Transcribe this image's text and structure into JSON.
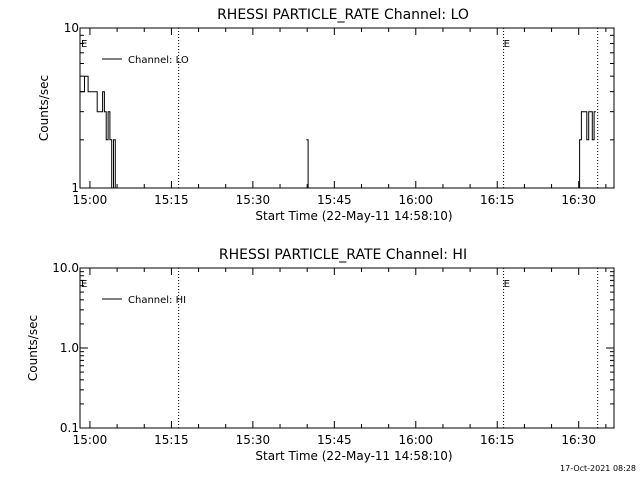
{
  "footer": {
    "timestamp": "17-Oct-2021 08:28"
  },
  "chart_data": [
    {
      "type": "line",
      "title": "RHESSI PARTICLE_RATE Channel: LO",
      "xlabel": "Start Time (22-May-11 14:58:10)",
      "ylabel": "Counts/sec",
      "xlim": [
        "14:58:10",
        "16:36:30"
      ],
      "ylim": [
        1,
        10
      ],
      "yscale": "log",
      "grid": false,
      "legend_position": "top-left",
      "x_ticks": [
        "15:00",
        "15:15",
        "15:30",
        "15:45",
        "16:00",
        "16:15",
        "16:30"
      ],
      "y_ticks": [
        "1",
        "10"
      ],
      "markers": [
        {
          "label": "E",
          "time": "14:58:10",
          "line": false
        },
        {
          "label": "",
          "time": "15:16:20",
          "line": true
        },
        {
          "label": "E",
          "time": "16:16:10",
          "line": true
        },
        {
          "label": "",
          "time": "16:33:30",
          "line": true
        }
      ],
      "series": [
        {
          "name": "Channel: LO",
          "segments": [
            {
              "x": [
                "14:58:10",
                "14:58:40",
                "14:59:00",
                "14:59:20",
                "14:59:40",
                "15:00:00",
                "15:00:20",
                "15:00:40",
                "15:01:00",
                "15:01:20",
                "15:01:40",
                "15:02:00",
                "15:02:20",
                "15:02:40",
                "15:03:00",
                "15:03:20",
                "15:03:40",
                "15:04:00",
                "15:04:20",
                "15:04:40"
              ],
              "y": [
                4,
                4,
                5,
                5,
                4,
                4,
                4,
                4,
                4,
                3,
                3,
                3,
                4,
                3,
                2,
                3,
                2,
                1,
                2,
                1
              ]
            },
            {
              "x": [
                "15:39:50",
                "15:40:00",
                "15:40:10",
                "15:40:30"
              ],
              "y": [
                2,
                2,
                1,
                1
              ]
            },
            {
              "x": [
                "16:29:50",
                "16:30:10",
                "16:30:30",
                "16:30:50",
                "16:31:10",
                "16:31:30",
                "16:31:50",
                "16:32:10",
                "16:32:30",
                "16:32:50",
                "16:33:10"
              ],
              "y": [
                1,
                2,
                3,
                3,
                3,
                2,
                3,
                3,
                2,
                3,
                3
              ]
            }
          ]
        }
      ]
    },
    {
      "type": "line",
      "title": "RHESSI PARTICLE_RATE Channel: HI",
      "xlabel": "Start Time (22-May-11 14:58:10)",
      "ylabel": "Counts/sec",
      "xlim": [
        "14:58:10",
        "16:36:30"
      ],
      "ylim": [
        0.1,
        10
      ],
      "yscale": "log",
      "grid": false,
      "legend_position": "top-left",
      "x_ticks": [
        "15:00",
        "15:15",
        "15:30",
        "15:45",
        "16:00",
        "16:15",
        "16:30"
      ],
      "y_ticks": [
        "0.1",
        "1.0",
        "10.0"
      ],
      "markers": [
        {
          "label": "E",
          "time": "14:58:10",
          "line": false
        },
        {
          "label": "",
          "time": "15:16:20",
          "line": true
        },
        {
          "label": "E",
          "time": "16:16:10",
          "line": true
        },
        {
          "label": "",
          "time": "16:33:30",
          "line": true
        }
      ],
      "series": [
        {
          "name": "Channel: HI",
          "segments": []
        }
      ]
    }
  ]
}
